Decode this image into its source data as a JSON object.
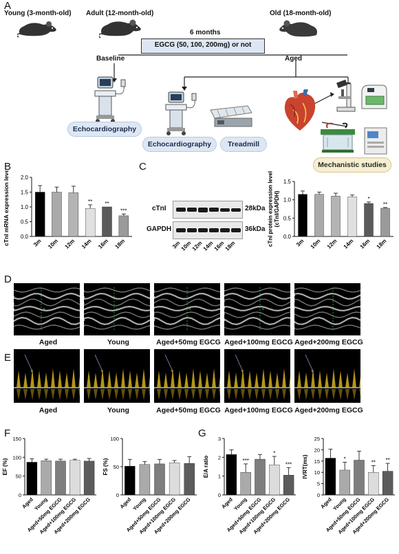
{
  "panel_labels": {
    "A": "A",
    "B": "B",
    "C": "C",
    "D": "D",
    "E": "E",
    "F": "F",
    "G": "G"
  },
  "panelA": {
    "young": "Young (3-month-old)",
    "adult": "Adult (12-month-old)",
    "old": "Old (18-month-old)",
    "duration": "6 months",
    "treatment": "EGCG (50, 100, 200mg) or not",
    "baseline": "Baseline",
    "aged": "Aged",
    "echo1": "Echocardiography",
    "echo2": "Echocardiography",
    "treadmill": "Treadmill",
    "mechanistic": "Mechanistic studies"
  },
  "panelC": {
    "band1_name": "cTnI",
    "band1_size": "28kDa",
    "band2_name": "GAPDH",
    "band2_size": "36kDa",
    "lanes": [
      "3m",
      "10m",
      "12m",
      "14m",
      "16m",
      "18m"
    ]
  },
  "panelD": {
    "captions": [
      "Aged",
      "Young",
      "Aged+50mg EGCG",
      "Aged+100mg EGCG",
      "Aged+200mg EGCG"
    ]
  },
  "panelE": {
    "captions": [
      "Aged",
      "Young",
      "Aged+50mg EGCG",
      "Aged+100mg EGCG",
      "Aged+200mg EGCG"
    ]
  },
  "chart_data": [
    {
      "id": "B",
      "type": "bar",
      "ylabel": "cTnI mRNA expression level",
      "categories": [
        "3m",
        "10m",
        "12m",
        "14m",
        "16m",
        "18m"
      ],
      "values": [
        1.5,
        1.5,
        1.48,
        0.95,
        1.0,
        0.7
      ],
      "errors": [
        0.22,
        0.17,
        0.22,
        0.12,
        0.0,
        0.06
      ],
      "significance": [
        "",
        "",
        "",
        "**",
        "**",
        "***"
      ],
      "ylim": [
        0,
        2.0
      ],
      "yticks": [
        "0.0",
        "0.5",
        "1.0",
        "1.5",
        "2.0"
      ],
      "colors": [
        "#000000",
        "#aaaaaa",
        "#b4b4b4",
        "#e0e0e0",
        "#5a5a5a",
        "#9a9a9a"
      ]
    },
    {
      "id": "C",
      "type": "bar",
      "ylabel": "cTnI protein expression level (cTnI/GAPDH)",
      "categories": [
        "3m",
        "10m",
        "12m",
        "14m",
        "16m",
        "18m"
      ],
      "values": [
        1.15,
        1.15,
        1.1,
        1.08,
        0.9,
        0.77
      ],
      "errors": [
        0.09,
        0.06,
        0.08,
        0.05,
        0.04,
        0.02
      ],
      "significance": [
        "",
        "",
        "",
        "",
        "*",
        "**"
      ],
      "ylim": [
        0,
        1.5
      ],
      "yticks": [
        "0.0",
        "0.5",
        "1.0",
        "1.5"
      ],
      "colors": [
        "#000000",
        "#aaaaaa",
        "#b4b4b4",
        "#e0e0e0",
        "#5a5a5a",
        "#9a9a9a"
      ]
    },
    {
      "id": "F1",
      "type": "bar",
      "ylabel": "EF (%)",
      "categories": [
        "Aged",
        "Young",
        "Aged+50mg EGCG",
        "Aged+100mg EGCG",
        "Aged+200mg EGCG"
      ],
      "values": [
        87,
        91,
        90,
        92,
        90
      ],
      "errors": [
        9,
        4,
        5,
        3,
        7
      ],
      "significance": [
        "",
        "",
        "",
        "",
        ""
      ],
      "ylim": [
        0,
        150
      ],
      "yticks": [
        "0",
        "50",
        "100",
        "150"
      ],
      "colors": [
        "#000000",
        "#aaaaaa",
        "#7e7e7e",
        "#dcdcdc",
        "#5c5c5c"
      ]
    },
    {
      "id": "F2",
      "type": "bar",
      "ylabel": "FS (%)",
      "categories": [
        "Aged",
        "Young",
        "Aged+50mg EGCG",
        "Aged+100mg EGCG",
        "Aged+200mg EGCG"
      ],
      "values": [
        51,
        54,
        55,
        57,
        56
      ],
      "errors": [
        12,
        5,
        8,
        4,
        12
      ],
      "significance": [
        "",
        "",
        "",
        "",
        ""
      ],
      "ylim": [
        0,
        100
      ],
      "yticks": [
        "0",
        "50",
        "100"
      ],
      "colors": [
        "#000000",
        "#aaaaaa",
        "#7e7e7e",
        "#dcdcdc",
        "#5c5c5c"
      ]
    },
    {
      "id": "G1",
      "type": "bar",
      "ylabel": "E/A ratio",
      "categories": [
        "Aged",
        "Young",
        "Aged+50mg EGCG",
        "Aged+100mg EGCG",
        "Aged+200mg EGCG"
      ],
      "values": [
        2.15,
        1.2,
        1.9,
        1.6,
        1.05
      ],
      "errors": [
        0.25,
        0.45,
        0.25,
        0.45,
        0.4
      ],
      "significance": [
        "",
        "***",
        "",
        "*",
        "***"
      ],
      "ylim": [
        0,
        3
      ],
      "yticks": [
        "0",
        "1",
        "2",
        "3"
      ],
      "colors": [
        "#000000",
        "#aaaaaa",
        "#7e7e7e",
        "#dcdcdc",
        "#5c5c5c"
      ]
    },
    {
      "id": "G2",
      "type": "bar",
      "ylabel": "IVRT(ms)",
      "categories": [
        "Aged",
        "Young",
        "Aged+50mg EGCG",
        "Aged+100mg EGCG",
        "Aged+200mg EGCG"
      ],
      "values": [
        16.3,
        11,
        15.4,
        10,
        10.5
      ],
      "errors": [
        4,
        3.5,
        4,
        3,
        3.5
      ],
      "significance": [
        "",
        "*",
        "",
        "**",
        "**"
      ],
      "ylim": [
        0,
        25
      ],
      "yticks": [
        "0",
        "5",
        "10",
        "15",
        "20",
        "25"
      ],
      "colors": [
        "#000000",
        "#aaaaaa",
        "#7e7e7e",
        "#dcdcdc",
        "#5c5c5c"
      ]
    }
  ]
}
